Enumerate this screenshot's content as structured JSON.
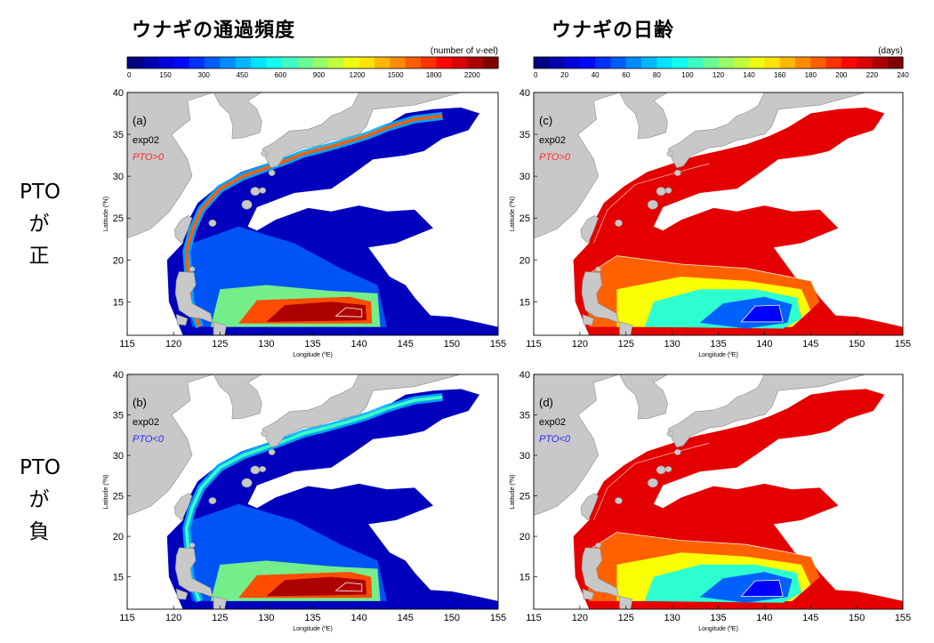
{
  "column_titles": [
    "ウナギの通過頻度",
    "ウナギの日齢"
  ],
  "row_labels": [
    [
      "PTO",
      "が",
      "正"
    ],
    [
      "PTO",
      "が",
      "負"
    ]
  ],
  "colors": {
    "land": "#c8c8c8",
    "pto_positive": "#ff2a2a",
    "pto_negative": "#2a2aff",
    "contour": "#ffffff"
  },
  "colorbars": [
    {
      "unit": "(number of v-eel)",
      "ticks": [
        "0",
        "150",
        "300",
        "450",
        "600",
        "900",
        "1200",
        "1500",
        "1800",
        "2200"
      ],
      "levels": 24,
      "colormap": "jet"
    },
    {
      "unit": "(days)",
      "ticks": [
        "0",
        "20",
        "40",
        "60",
        "80",
        "100",
        "120",
        "140",
        "160",
        "180",
        "200",
        "220",
        "240"
      ],
      "levels": 24,
      "colormap": "jet"
    }
  ],
  "chart_data": [
    {
      "type": "heatmap",
      "panel_label": "(a)",
      "experiment": "exp02",
      "condition": "PTO>0",
      "variable": "number of v-eel",
      "xlabel": "Longitude (ºE)",
      "ylabel": "Latitude (ºN)",
      "xlim": [
        115,
        155
      ],
      "ylim": [
        11,
        40
      ],
      "xticks": [
        "115",
        "120",
        "125",
        "130",
        "135",
        "140",
        "145",
        "150",
        "155"
      ],
      "yticks": [
        "15",
        "20",
        "25",
        "30",
        "35",
        "40"
      ],
      "highlights": [
        {
          "feature": "Kuroshio path",
          "level": 1800
        },
        {
          "feature": "Spawning area 12-15N 128-141E",
          "level": 2200
        }
      ]
    },
    {
      "type": "heatmap",
      "panel_label": "(c)",
      "experiment": "exp02",
      "condition": "PTO>0",
      "variable": "days",
      "xlabel": "Longitude (ºE)",
      "ylabel": "Latitude (ºN)",
      "xlim": [
        115,
        155
      ],
      "ylim": [
        11,
        40
      ],
      "xticks": [
        "115",
        "120",
        "125",
        "130",
        "135",
        "140",
        "145",
        "150",
        "155"
      ],
      "yticks": [
        "15",
        "20",
        "25",
        "30",
        "35",
        "40"
      ],
      "highlights": [
        {
          "feature": "Spawning area youngest",
          "level": 30
        },
        {
          "feature": "Kuroshio / north",
          "level": 230
        }
      ]
    },
    {
      "type": "heatmap",
      "panel_label": "(b)",
      "experiment": "exp02",
      "condition": "PTO<0",
      "variable": "number of v-eel",
      "xlabel": "Longitude (ºE)",
      "ylabel": "Latitude (ºN)",
      "xlim": [
        115,
        155
      ],
      "ylim": [
        11,
        40
      ],
      "xticks": [
        "115",
        "120",
        "125",
        "130",
        "135",
        "140",
        "145",
        "150",
        "155"
      ],
      "yticks": [
        "15",
        "20",
        "25",
        "30",
        "35",
        "40"
      ],
      "highlights": [
        {
          "feature": "Kuroshio path",
          "level": 1000
        },
        {
          "feature": "Spawning area 12-15N 127-140E",
          "level": 2200
        }
      ]
    },
    {
      "type": "heatmap",
      "panel_label": "(d)",
      "experiment": "exp02",
      "condition": "PTO<0",
      "variable": "days",
      "xlabel": "Longitude (ºE)",
      "ylabel": "Latitude (ºN)",
      "xlim": [
        115,
        155
      ],
      "ylim": [
        11,
        40
      ],
      "xticks": [
        "115",
        "120",
        "125",
        "130",
        "135",
        "140",
        "145",
        "150",
        "155"
      ],
      "yticks": [
        "15",
        "20",
        "25",
        "30",
        "35",
        "40"
      ],
      "highlights": [
        {
          "feature": "Spawning area youngest",
          "level": 30
        },
        {
          "feature": "Kuroshio / north",
          "level": 230
        }
      ]
    }
  ]
}
